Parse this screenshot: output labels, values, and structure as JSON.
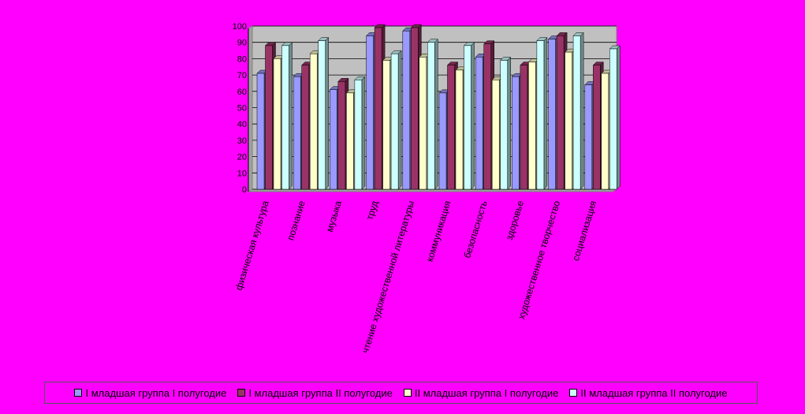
{
  "chart_data": {
    "type": "bar",
    "title": "",
    "xlabel": "",
    "ylabel": "",
    "ylim": [
      0,
      100
    ],
    "yticks": [
      0,
      10,
      20,
      30,
      40,
      50,
      60,
      70,
      80,
      90,
      100
    ],
    "grid": true,
    "legend_position": "bottom",
    "plot_background": "#C0C0C0",
    "categories": [
      "физическая культура",
      "познание",
      "музыка",
      "труд",
      "чтение художественной литературы",
      "коммуникация",
      "безопасность",
      "здоровье",
      "художественное творчество",
      "социализация"
    ],
    "series": [
      {
        "name": "I младшая группа I полугодие",
        "color": "#9999FF",
        "values": [
          71,
          69,
          61,
          94,
          97,
          59,
          81,
          69,
          92,
          64
        ]
      },
      {
        "name": "I младшая группа II полугодие",
        "color": "#993366",
        "values": [
          88,
          76,
          66,
          99,
          99,
          76,
          89,
          76,
          94,
          76
        ]
      },
      {
        "name": "II младшая группа I полугодие",
        "color": "#FFFFCC",
        "values": [
          80,
          83,
          59,
          79,
          81,
          73,
          67,
          78,
          84,
          71
        ]
      },
      {
        "name": "II младшая группа II полугодие",
        "color": "#CCFFFF",
        "values": [
          88,
          91,
          67,
          83,
          90,
          88,
          79,
          91,
          94,
          86
        ]
      }
    ]
  }
}
